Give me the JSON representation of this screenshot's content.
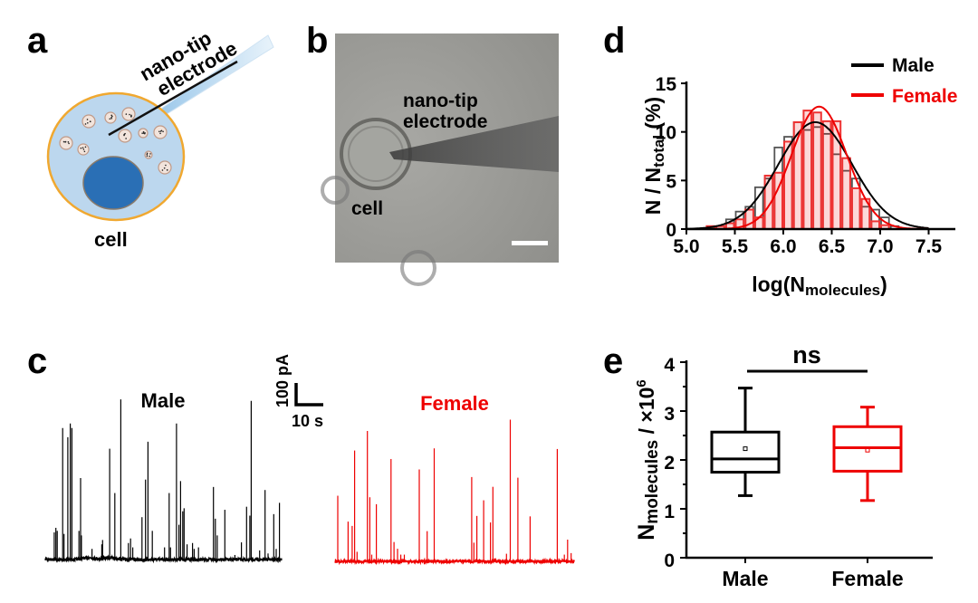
{
  "panels": {
    "a": {
      "letter": "a",
      "electrode_line1": "nano-tip",
      "electrode_line2": "electrode",
      "cell_label": "cell"
    },
    "b": {
      "letter": "b",
      "electrode_line1": "nano-tip",
      "electrode_line2": "electrode",
      "cell_label": "cell"
    },
    "c": {
      "letter": "c",
      "scale_y_label": "100 pA",
      "scale_x_label": "10 s"
    },
    "d": {
      "letter": "d"
    },
    "e": {
      "letter": "e"
    }
  },
  "colors": {
    "male": "#000000",
    "female": "#ee0000",
    "cytoplasm": "#bcd7ee",
    "membrane": "#f0a830",
    "nucleus": "#2a6fb5"
  },
  "chart_data": [
    {
      "type": "line",
      "panel": "c",
      "scale_bar": {
        "current_pA": 100,
        "time_s": 10
      },
      "series": [
        {
          "name": "Male",
          "color": "#000000",
          "duration_s": 87,
          "spikes": [
            [
              3.3,
              125
            ],
            [
              3.9,
              146
            ],
            [
              4.4,
              132
            ],
            [
              6.4,
              605
            ],
            [
              6.9,
              118
            ],
            [
              8.3,
              563
            ],
            [
              9.2,
              626
            ],
            [
              9.8,
              605
            ],
            [
              12.4,
              132
            ],
            [
              13.0,
              375
            ],
            [
              13.3,
              111
            ],
            [
              17.2,
              49
            ],
            [
              20.8,
              70
            ],
            [
              21.1,
              90
            ],
            [
              23.7,
              510
            ],
            [
              25.6,
              306
            ],
            [
              27.8,
              737
            ],
            [
              30.6,
              76
            ],
            [
              31.4,
              97
            ],
            [
              32.2,
              56
            ],
            [
              35.6,
              195
            ],
            [
              36.9,
              368
            ],
            [
              37.8,
              542
            ],
            [
              39.4,
              132
            ],
            [
              43.9,
              56
            ],
            [
              45.6,
              306
            ],
            [
              46.1,
              56
            ],
            [
              48.3,
              626
            ],
            [
              49.2,
              160
            ],
            [
              49.8,
              361
            ],
            [
              50.6,
              222
            ],
            [
              51.1,
              236
            ],
            [
              52.2,
              70
            ],
            [
              54.2,
              76
            ],
            [
              54.8,
              49
            ],
            [
              56.4,
              56
            ],
            [
              61.9,
              334
            ],
            [
              62.6,
              188
            ],
            [
              63.3,
              111
            ],
            [
              66.1,
              229
            ],
            [
              69.8,
              21
            ],
            [
              72.2,
              79
            ],
            [
              74.1,
              243
            ],
            [
              75.3,
              202
            ],
            [
              75.8,
              730
            ],
            [
              78.9,
              42
            ],
            [
              80.9,
              320
            ],
            [
              82.0,
              28
            ],
            [
              84.1,
              209
            ],
            [
              85.0,
              49
            ],
            [
              86.2,
              261
            ]
          ]
        },
        {
          "name": "Female",
          "color": "#ee0000",
          "duration_s": 88,
          "spikes": [
            [
              1.0,
              302
            ],
            [
              4.8,
              183
            ],
            [
              6.3,
              163
            ],
            [
              7.2,
              510
            ],
            [
              8.1,
              44
            ],
            [
              11.9,
              600
            ],
            [
              12.8,
              295
            ],
            [
              13.5,
              31
            ],
            [
              15.2,
              263
            ],
            [
              20.6,
              471
            ],
            [
              21.7,
              89
            ],
            [
              23.0,
              58
            ],
            [
              24.2,
              31
            ],
            [
              25.5,
              31
            ],
            [
              31.0,
              423
            ],
            [
              33.9,
              139
            ],
            [
              36.5,
              520
            ],
            [
              50.3,
              388
            ],
            [
              51.1,
              86
            ],
            [
              52.2,
              209
            ],
            [
              54.7,
              281
            ],
            [
              57.2,
              179
            ],
            [
              58.1,
              343
            ],
            [
              63.1,
              35
            ],
            [
              64.5,
              652
            ],
            [
              67.3,
              385
            ],
            [
              71.8,
              207
            ],
            [
              81.8,
              517
            ],
            [
              84.4,
              31
            ],
            [
              85.6,
              100
            ],
            [
              86.9,
              38
            ]
          ]
        }
      ]
    },
    {
      "type": "bar",
      "panel": "d",
      "xlabel": {
        "main": "log(N",
        "sub": "molecules",
        "end": ")"
      },
      "ylabel": {
        "main": "N / N",
        "sub": "total",
        "end": " (%)"
      },
      "xlim": [
        5.0,
        7.8
      ],
      "ylim": [
        0,
        15
      ],
      "xticks": [
        "5.0",
        "5.5",
        "6.0",
        "6.5",
        "7.0",
        "7.5"
      ],
      "yticks": [
        "0",
        "5",
        "10",
        "15"
      ],
      "legend_position": "top-right",
      "bin_width": 0.1,
      "series": [
        {
          "name": "Male",
          "color": "#000000",
          "bins": [
            5.45,
            5.55,
            5.65,
            5.75,
            5.85,
            5.95,
            6.05,
            6.15,
            6.25,
            6.35,
            6.45,
            6.55,
            6.65,
            6.75,
            6.85,
            6.95,
            7.05,
            7.15
          ],
          "values": [
            1.0,
            1.8,
            2.3,
            4.3,
            5.2,
            8.4,
            9.5,
            11.0,
            10.2,
            10.5,
            9.8,
            7.7,
            6.0,
            5.2,
            2.3,
            2.0,
            1.2,
            0.3
          ],
          "fit": {
            "type": "gaussian",
            "mean": 6.33,
            "sd": 0.38,
            "peak": 11.0
          }
        },
        {
          "name": "Female",
          "color": "#ee0000",
          "bins": [
            5.25,
            5.35,
            5.45,
            5.55,
            5.65,
            5.75,
            5.85,
            5.95,
            6.05,
            6.15,
            6.25,
            6.35,
            6.45,
            6.55,
            6.65,
            6.75,
            6.85,
            6.95,
            7.05
          ],
          "values": [
            0.3,
            0.3,
            0.6,
            1.0,
            2.0,
            1.2,
            5.5,
            5.8,
            9.0,
            11.0,
            12.2,
            12.0,
            11.1,
            11.1,
            7.3,
            4.2,
            3.1,
            0.8,
            0.4
          ],
          "fit": {
            "type": "gaussian",
            "mean": 6.37,
            "sd": 0.285,
            "peak": 12.6
          }
        }
      ]
    },
    {
      "type": "box",
      "panel": "e",
      "ylabel": {
        "main": "N",
        "sub": "molecules",
        "end": " / ×10",
        "sup": "6"
      },
      "ylim": [
        0,
        4
      ],
      "yticks": [
        "0",
        "1",
        "2",
        "3",
        "4"
      ],
      "categories": [
        "Male",
        "Female"
      ],
      "significance": "ns",
      "series": [
        {
          "name": "Male",
          "color": "#000000",
          "min": 1.27,
          "q1": 1.75,
          "median": 2.02,
          "q3": 2.57,
          "max": 3.47,
          "mean": 2.23
        },
        {
          "name": "Female",
          "color": "#ee0000",
          "min": 1.17,
          "q1": 1.77,
          "median": 2.25,
          "q3": 2.68,
          "max": 3.08,
          "mean": 2.2
        }
      ]
    }
  ]
}
